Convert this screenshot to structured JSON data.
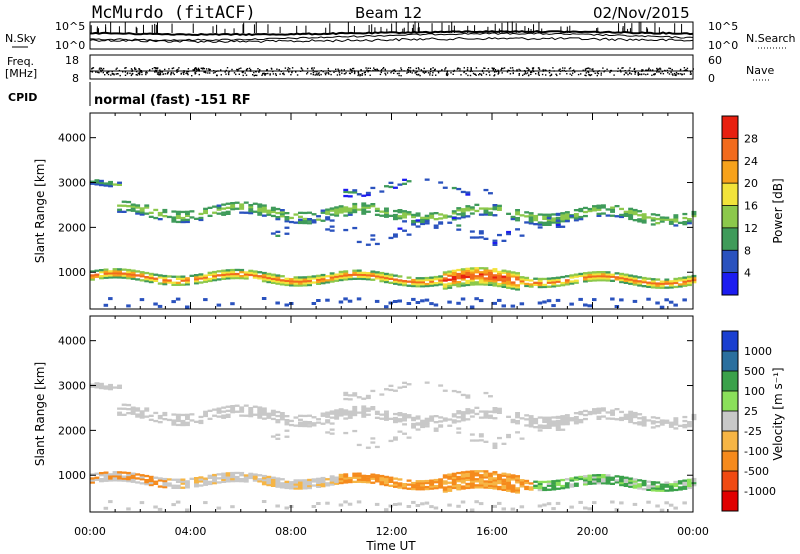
{
  "header": {
    "station": "McMurdo (fitACF)",
    "beam": "Beam 12",
    "date": "02/Nov/2015"
  },
  "top_panel": {
    "left_label": "N.Sky",
    "right_label": "N.Search",
    "left_ticks": [
      "10^5",
      "10^0"
    ],
    "right_ticks": [
      "10^5",
      "10^0"
    ]
  },
  "freq_panel": {
    "left_label_top": "Freq.",
    "left_label_bottom": "[MHz]",
    "left_ticks": [
      "18",
      "8"
    ],
    "right_label": "Nave",
    "right_ticks": [
      "60",
      "0"
    ],
    "cpid_label": "CPID",
    "cpid_text": "normal (fast) -151 RF"
  },
  "colors": {
    "power": [
      "#1c1cf0",
      "#2a52be",
      "#3f9b5a",
      "#8cc84b",
      "#f2e33a",
      "#f7a21b",
      "#f26b1d",
      "#e82010"
    ],
    "velocity": [
      "#e00000",
      "#f04a12",
      "#f58a1c",
      "#f6b545",
      "#c8c8c8",
      "#8be05a",
      "#3aa14a",
      "#2a6f9e",
      "#1a3fd0"
    ]
  },
  "chart_data": [
    {
      "type": "heatmap",
      "quantity": "Power",
      "xlabel": "Time UT",
      "ylabel": "Slant Range [km]",
      "x_ticks": [
        "00:00",
        "04:00",
        "08:00",
        "12:00",
        "16:00",
        "20:00",
        "00:00"
      ],
      "y_ticks": [
        1000,
        2000,
        3000,
        4000
      ],
      "ylim": [
        180,
        4550
      ],
      "colorbar": {
        "label": "Power [dB]",
        "ticks": [
          4,
          8,
          12,
          16,
          20,
          24,
          28
        ],
        "range": [
          0,
          32
        ]
      }
    },
    {
      "type": "heatmap",
      "quantity": "Velocity",
      "xlabel": "Time UT",
      "ylabel": "Slant Range [km]",
      "x_ticks": [
        "00:00",
        "04:00",
        "08:00",
        "12:00",
        "16:00",
        "20:00",
        "00:00"
      ],
      "y_ticks": [
        1000,
        2000,
        3000,
        4000
      ],
      "ylim": [
        180,
        4550
      ],
      "colorbar": {
        "label": "Velocity [m s⁻¹]",
        "ticks": [
          "1000",
          "500",
          "100",
          "25",
          "-25",
          "-100",
          "-500",
          "-1000"
        ]
      }
    }
  ]
}
